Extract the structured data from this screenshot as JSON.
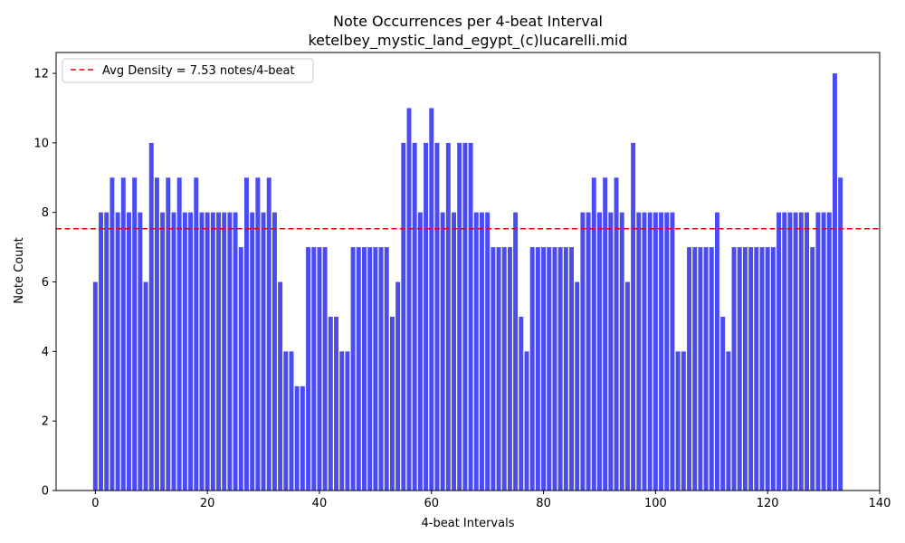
{
  "chart_data": {
    "type": "bar",
    "title": "Note Occurrences per 4-beat Interval",
    "subtitle": "ketelbey_mystic_land_egypt_(c)lucarelli.mid",
    "xlabel": "4-beat Intervals",
    "ylabel": "Note Count",
    "xlim": [
      -7,
      140
    ],
    "ylim": [
      0,
      12.6
    ],
    "xticks": [
      0,
      20,
      40,
      60,
      80,
      100,
      120,
      140
    ],
    "yticks": [
      0,
      2,
      4,
      6,
      8,
      10,
      12
    ],
    "bar_color": "#4b4bf2",
    "average_line": {
      "value": 7.53,
      "color": "#e8000b",
      "style": "dashed",
      "label": "Avg Density = 7.53 notes/4-beat"
    },
    "legend_position": "top-left",
    "grid": false,
    "x": [
      0,
      1,
      2,
      3,
      4,
      5,
      6,
      7,
      8,
      9,
      10,
      11,
      12,
      13,
      14,
      15,
      16,
      17,
      18,
      19,
      20,
      21,
      22,
      23,
      24,
      25,
      26,
      27,
      28,
      29,
      30,
      31,
      32,
      33,
      34,
      35,
      36,
      37,
      38,
      39,
      40,
      41,
      42,
      43,
      44,
      45,
      46,
      47,
      48,
      49,
      50,
      51,
      52,
      53,
      54,
      55,
      56,
      57,
      58,
      59,
      60,
      61,
      62,
      63,
      64,
      65,
      66,
      67,
      68,
      69,
      70,
      71,
      72,
      73,
      74,
      75,
      76,
      77,
      78,
      79,
      80,
      81,
      82,
      83,
      84,
      85,
      86,
      87,
      88,
      89,
      90,
      91,
      92,
      93,
      94,
      95,
      96,
      97,
      98,
      99,
      100,
      101,
      102,
      103,
      104,
      105,
      106,
      107,
      108,
      109,
      110,
      111,
      112,
      113,
      114,
      115,
      116,
      117,
      118,
      119,
      120,
      121,
      122,
      123,
      124,
      125,
      126,
      127,
      128,
      129,
      130,
      131,
      132,
      133
    ],
    "values": [
      6,
      8,
      8,
      9,
      8,
      9,
      8,
      9,
      8,
      6,
      10,
      9,
      8,
      9,
      8,
      9,
      8,
      8,
      9,
      8,
      8,
      8,
      8,
      8,
      8,
      8,
      7,
      9,
      8,
      9,
      8,
      9,
      8,
      6,
      4,
      4,
      3,
      3,
      7,
      7,
      7,
      7,
      5,
      5,
      4,
      4,
      7,
      7,
      7,
      7,
      7,
      7,
      7,
      5,
      6,
      10,
      11,
      10,
      8,
      10,
      11,
      10,
      8,
      10,
      8,
      10,
      10,
      10,
      8,
      8,
      8,
      7,
      7,
      7,
      7,
      8,
      5,
      4,
      7,
      7,
      7,
      7,
      7,
      7,
      7,
      7,
      6,
      8,
      8,
      9,
      8,
      9,
      8,
      9,
      8,
      6,
      10,
      8,
      8,
      8,
      8,
      8,
      8,
      8,
      4,
      4,
      7,
      7,
      7,
      7,
      7,
      8,
      5,
      4,
      7,
      7,
      7,
      7,
      7,
      7,
      7,
      7,
      8,
      8,
      8,
      8,
      8,
      8,
      7,
      8,
      8,
      8,
      12,
      9
    ]
  }
}
